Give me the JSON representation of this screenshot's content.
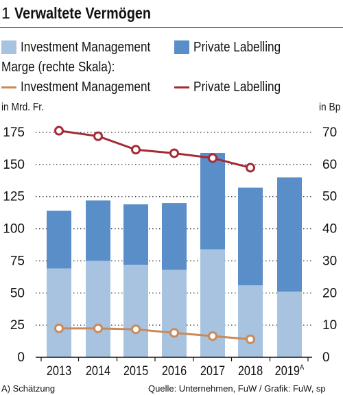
{
  "header": {
    "number": "1",
    "title": "Verwaltete Vermögen"
  },
  "legend": {
    "bar_investment": "Investment Management",
    "bar_private": "Private Labelling",
    "marge_heading": "Marge (rechte Skala):",
    "line_investment": "Investment Management",
    "line_private": "Private Labelling"
  },
  "units": {
    "left": "in Mrd. Fr.",
    "right": "in Bp"
  },
  "footer": {
    "note": "A) Schätzung",
    "source": "Quelle: Unternehmen, FuW / Grafik: FuW, sp"
  },
  "colors": {
    "investment_bar": "#a7c3df",
    "private_bar": "#5a8ec8",
    "investment_line": "#c98a5a",
    "private_line": "#a52a36"
  },
  "chart_data": {
    "type": "bar",
    "stacked": true,
    "categories": [
      "2013",
      "2014",
      "2015",
      "2016",
      "2017",
      "2018",
      "2019A"
    ],
    "category_labels": [
      {
        "main": "2013",
        "sup": ""
      },
      {
        "main": "2014",
        "sup": ""
      },
      {
        "main": "2015",
        "sup": ""
      },
      {
        "main": "2016",
        "sup": ""
      },
      {
        "main": "2017",
        "sup": ""
      },
      {
        "main": "2018",
        "sup": ""
      },
      {
        "main": "2019",
        "sup": "A"
      }
    ],
    "series": [
      {
        "name": "Investment Management",
        "axis": "left",
        "kind": "bar",
        "values": [
          69,
          75,
          72,
          68,
          84,
          56,
          51
        ]
      },
      {
        "name": "Private Labelling",
        "axis": "left",
        "kind": "bar",
        "values": [
          45,
          47,
          47,
          52,
          75,
          76,
          89
        ]
      },
      {
        "name": "Investment Management",
        "axis": "right",
        "kind": "line",
        "values": [
          9,
          9,
          8.7,
          7.6,
          6.6,
          5.6,
          null
        ]
      },
      {
        "name": "Private Labelling",
        "axis": "right",
        "kind": "line",
        "values": [
          70.5,
          68.8,
          64.6,
          63.5,
          62.0,
          59.0,
          null
        ]
      }
    ],
    "y_left": {
      "label": "in Mrd. Fr.",
      "range": [
        0,
        175
      ],
      "ticks": [
        0,
        25,
        50,
        75,
        100,
        125,
        150,
        175
      ]
    },
    "y_right": {
      "label": "in Bp",
      "range": [
        0,
        70
      ],
      "ticks": [
        0,
        10,
        20,
        30,
        40,
        50,
        60,
        70
      ]
    },
    "grid": "dotted horizontal"
  }
}
